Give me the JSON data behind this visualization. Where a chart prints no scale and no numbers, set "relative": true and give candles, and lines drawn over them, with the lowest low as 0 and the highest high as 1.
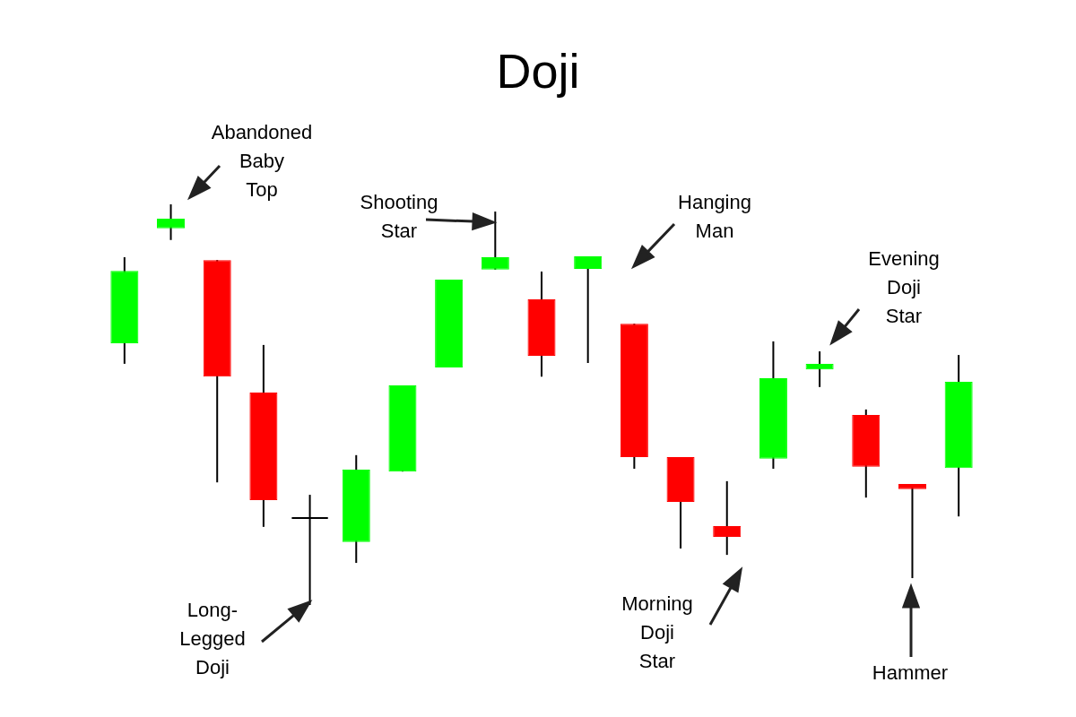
{
  "chart_data": {
    "type": "candlestick",
    "title": "Doji",
    "relative": true,
    "categories": [
      null,
      null,
      null,
      null,
      null,
      null,
      null,
      null,
      null,
      null,
      null,
      null,
      null,
      null,
      null,
      null,
      null,
      null,
      null
    ],
    "ohlc": [
      [
        0.653,
        0.868,
        0.602,
        0.834
      ],
      [
        0.94,
        1.0,
        0.911,
        0.964
      ],
      [
        0.861,
        0.861,
        0.306,
        0.57
      ],
      [
        0.53,
        0.649,
        0.195,
        0.262
      ],
      [
        0.217,
        0.275,
        0,
        0.217
      ],
      [
        0.157,
        0.374,
        0.105,
        0.338
      ],
      [
        0.333,
        0.548,
        0.333,
        0.548
      ],
      [
        0.593,
        0.812,
        0.593,
        0.812
      ],
      [
        0.837,
        0.982,
        0.837,
        0.868
      ],
      [
        0.763,
        0.832,
        0.57,
        0.622
      ],
      [
        0.839,
        0.87,
        0.604,
        0.87
      ],
      [
        0.702,
        0.702,
        0.34,
        0.369
      ],
      [
        0.369,
        0.369,
        0.141,
        0.257
      ],
      [
        0.197,
        0.309,
        0.125,
        0.17
      ],
      [
        0.365,
        0.658,
        0.34,
        0.566
      ],
      [
        0.588,
        0.633,
        0.544,
        0.602
      ],
      [
        0.474,
        0.488,
        0.268,
        0.345
      ],
      [
        0.302,
        0.302,
        0.067,
        0.289
      ],
      [
        0.342,
        0.624,
        0.221,
        0.557
      ]
    ],
    "colors": [
      "#00ff00",
      "#00ff00",
      "#ff0000",
      "#ff0000",
      "#000000",
      "#00ff00",
      "#00ff00",
      "#00ff00",
      "#00ff00",
      "#ff0000",
      "#00ff00",
      "#ff0000",
      "#ff0000",
      "#ff0000",
      "#00ff00",
      "#00ff00",
      "#ff0000",
      "#ff0000",
      "#00ff00"
    ],
    "annotations": [
      "Abandoned Baby Top",
      "Shooting Star",
      "Hanging Man",
      "Evening Doji Star",
      "Long-Legged Doji",
      "Morning Doji Star",
      "Hammer"
    ]
  }
}
